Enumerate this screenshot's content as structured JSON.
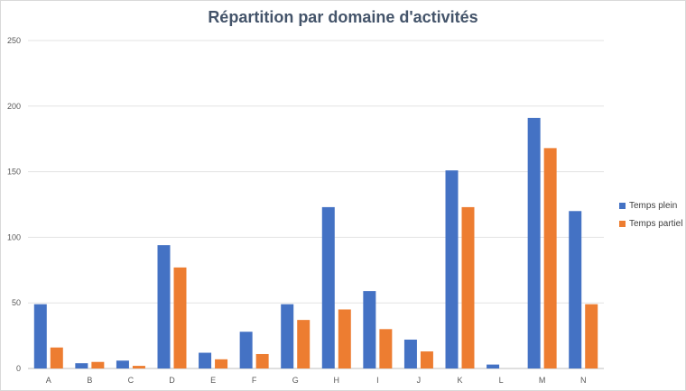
{
  "chart_data": {
    "type": "bar",
    "title": "Répartition par domaine d'activités",
    "xlabel": "",
    "ylabel": "",
    "ylim": [
      0,
      250
    ],
    "yticks": [
      0,
      50,
      100,
      150,
      200,
      250
    ],
    "grid": true,
    "legend_position": "right",
    "categories": [
      "A",
      "B",
      "C",
      "D",
      "E",
      "F",
      "G",
      "H",
      "I",
      "J",
      "K",
      "L",
      "M",
      "N"
    ],
    "series": [
      {
        "name": "Temps plein",
        "color": "#4472c4",
        "values": [
          49,
          4,
          6,
          94,
          12,
          28,
          49,
          123,
          59,
          22,
          151,
          3,
          191,
          120
        ]
      },
      {
        "name": "Temps partiel",
        "color": "#ed7d31",
        "values": [
          16,
          5,
          2,
          77,
          7,
          11,
          37,
          45,
          30,
          13,
          123,
          0,
          168,
          49
        ]
      }
    ]
  }
}
